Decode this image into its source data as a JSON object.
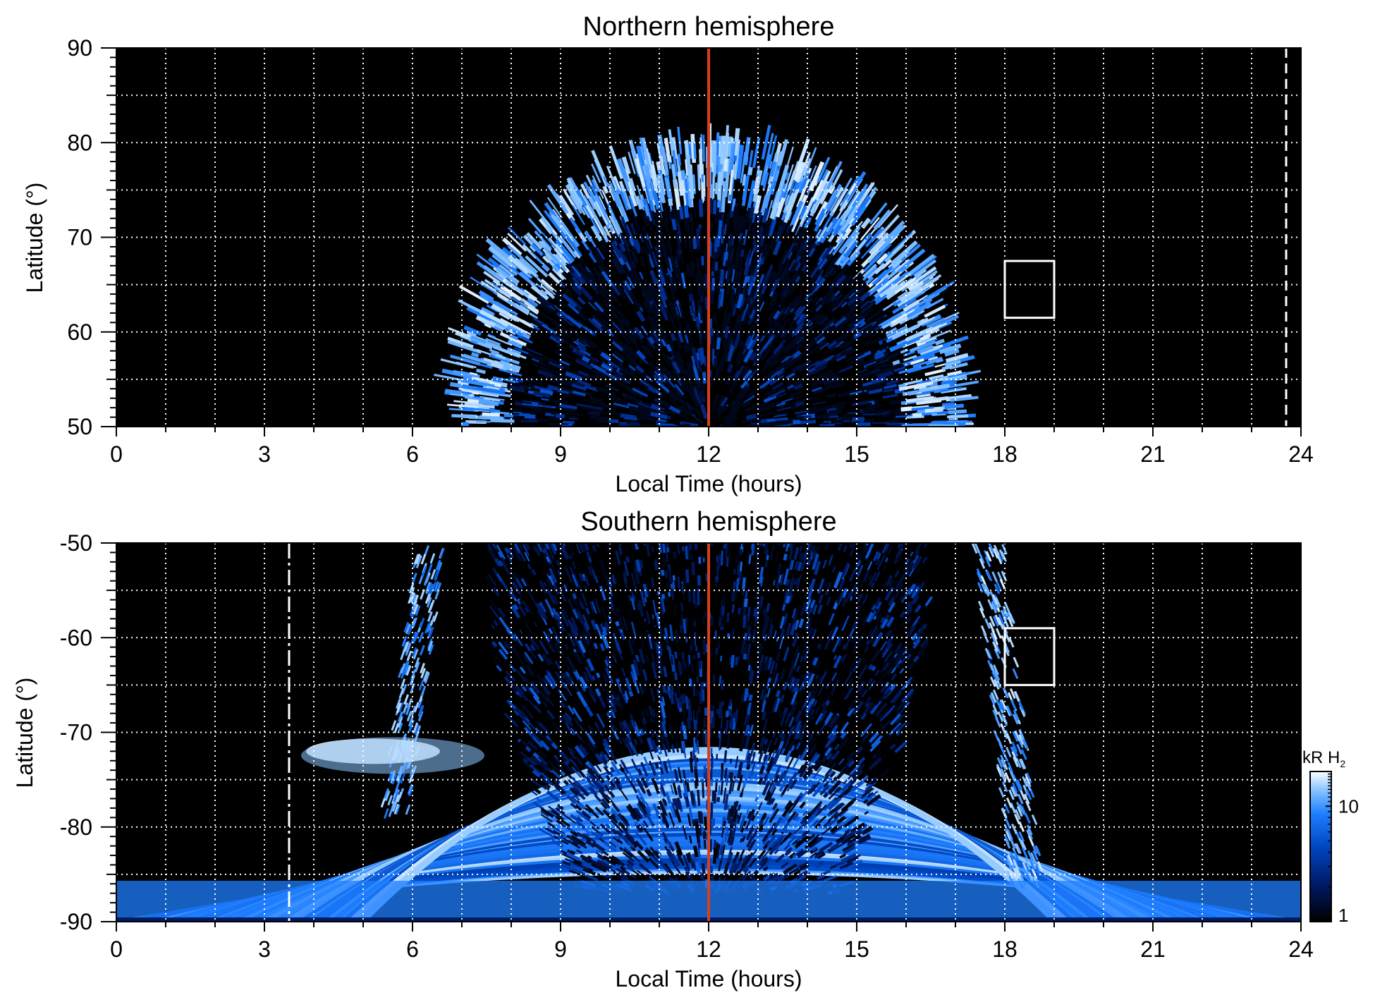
{
  "chart_data": [
    {
      "type": "heatmap",
      "title": "Northern hemisphere",
      "xlabel": "Local Time (hours)",
      "ylabel": "Latitude (°)",
      "xlim": [
        0,
        24
      ],
      "ylim": [
        50,
        90
      ],
      "xticks": [
        "0",
        "3",
        "6",
        "9",
        "12",
        "15",
        "18",
        "21",
        "24"
      ],
      "yticks": [
        "50",
        "60",
        "70",
        "80",
        "90"
      ],
      "grid": true,
      "background": "#000000",
      "emission_region": {
        "local_time_range": [
          7,
          17
        ],
        "peak_latitude": 79,
        "bright_oval_latitude_range": [
          68,
          78
        ]
      },
      "noon_line": {
        "x": 12,
        "color": "#d4401c"
      },
      "box": {
        "x": [
          18,
          19
        ],
        "y": [
          61.5,
          67.5
        ],
        "color": "#ffffff"
      },
      "dashed_line": {
        "x": 23.7,
        "y": [
          50,
          90
        ],
        "color": "#ffffff"
      }
    },
    {
      "type": "heatmap",
      "title": "Southern hemisphere",
      "xlabel": "Local Time (hours)",
      "ylabel": "Latitude (°)",
      "xlim": [
        0,
        24
      ],
      "ylim": [
        -90,
        -50
      ],
      "xticks": [
        "0",
        "3",
        "6",
        "9",
        "12",
        "15",
        "18",
        "21",
        "24"
      ],
      "yticks": [
        "-90",
        "-80",
        "-70",
        "-60",
        "-50"
      ],
      "grid": true,
      "background": "#000000",
      "emission_region": {
        "local_time_range": [
          5.5,
          18.5
        ],
        "bright_arc_latitude": -72,
        "bright_ridge_local_time": 18
      },
      "noon_line": {
        "x": 12,
        "color": "#d4401c"
      },
      "box": {
        "x": [
          18,
          19
        ],
        "y": [
          -65,
          -59
        ],
        "color": "#ffffff"
      },
      "dashed_line": {
        "x": 3.5,
        "y": [
          -90,
          -50
        ],
        "color": "#ffffff"
      }
    }
  ],
  "colorbar": {
    "label_main": "kR H",
    "label_sub": "2",
    "scale": "log",
    "range": [
      1,
      20
    ],
    "ticks": [
      "1",
      "10"
    ],
    "colors": [
      "#000000",
      "#001a66",
      "#0047c2",
      "#1f7fff",
      "#8cc6ff",
      "#ffffff"
    ]
  }
}
